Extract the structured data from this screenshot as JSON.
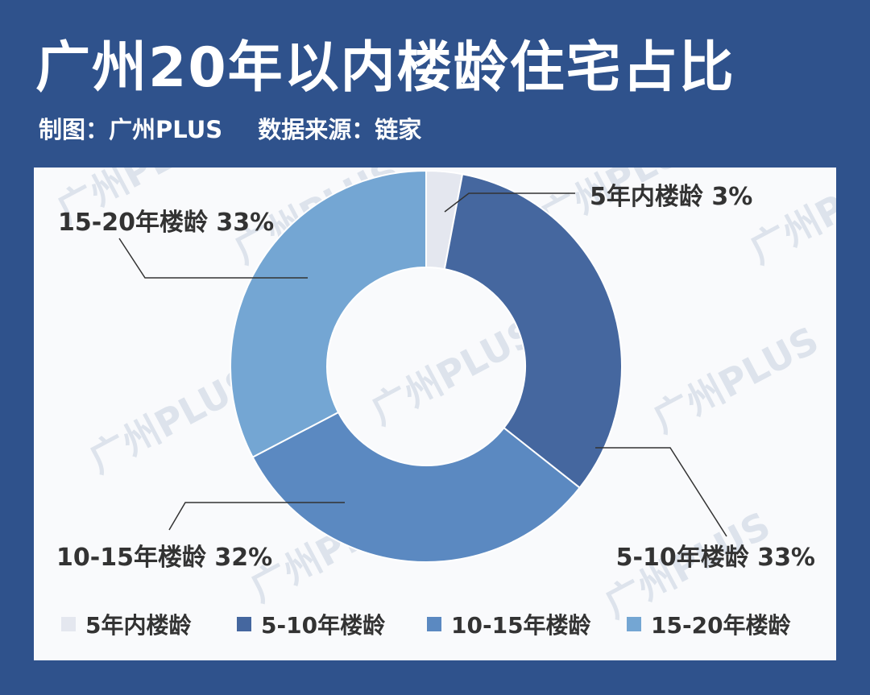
{
  "header": {
    "title": "广州20年以内楼龄住宅占比",
    "credit": "制图：广州PLUS",
    "source": "数据来源：链家"
  },
  "watermark": "广州PLUS",
  "colors": {
    "background": "#2f528c",
    "card": "#f9fafc"
  },
  "chart_data": {
    "type": "pie",
    "donut": true,
    "title": "广州20年以内楼龄住宅占比",
    "legend_position": "bottom",
    "slices": [
      {
        "name": "5年内楼龄",
        "value": 3,
        "label": "5年内楼龄 3%",
        "color": "#e4e7ef"
      },
      {
        "name": "5-10年楼龄",
        "value": 33,
        "label": "5-10年楼龄 33%",
        "color": "#45679f"
      },
      {
        "name": "10-15年楼龄",
        "value": 32,
        "label": "10-15年楼龄 32%",
        "color": "#5b89c1"
      },
      {
        "name": "15-20年楼龄",
        "value": 33,
        "label": "15-20年楼龄 33%",
        "color": "#74a6d3"
      }
    ]
  }
}
